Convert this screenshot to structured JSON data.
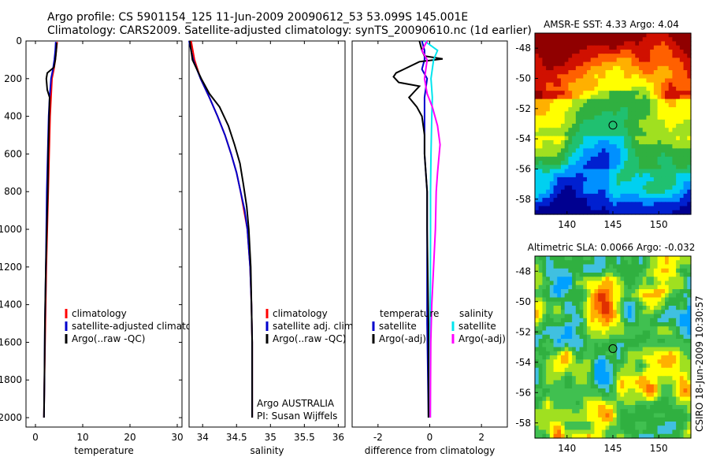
{
  "title_line1": "Argo profile: CS 5901154_125 11-Jun-2009 20090612_53 53.099S 145.001E",
  "title_line2": "Climatology: CARS2009. Satellite-adjusted climatology: synTS_20090610.nc (1d earlier)",
  "side_stamp": "CSIRO 18-Jun-2009 10:30:57",
  "colors": {
    "black": "#000000",
    "red": "#ff0000",
    "blue": "#0000cc",
    "cyan": "#00e5ee",
    "magenta": "#ff00ff"
  },
  "chart_data": [
    {
      "id": "temperature",
      "type": "line",
      "xlabel": "temperature",
      "ylabel": "",
      "xlim": [
        -2,
        31
      ],
      "ylim": [
        2050,
        0
      ],
      "xticks": [
        0,
        10,
        20,
        30
      ],
      "xtick_labels": [
        "0",
        "10",
        "20",
        "30"
      ],
      "yticks": [
        0,
        200,
        400,
        600,
        800,
        1000,
        1200,
        1400,
        1600,
        1800,
        2000
      ],
      "ytick_labels": [
        "0",
        "200",
        "400",
        "600",
        "800",
        "1000",
        "1200",
        "1400",
        "1600",
        "1800",
        "2000"
      ],
      "legend": {
        "placement": "lower-right",
        "entries": [
          "climatology",
          "satellite-adjusted climatology",
          "Argo(..raw -QC)"
        ]
      },
      "series": [
        {
          "name": "climatology",
          "color": "red",
          "points": [
            [
              4.6,
              5
            ],
            [
              4.4,
              50
            ],
            [
              4.2,
              100
            ],
            [
              3.9,
              150
            ],
            [
              3.5,
              200
            ],
            [
              3.3,
              300
            ],
            [
              3.1,
              400
            ],
            [
              2.9,
              600
            ],
            [
              2.7,
              800
            ],
            [
              2.5,
              1000
            ],
            [
              2.3,
              1200
            ],
            [
              2.1,
              1500
            ],
            [
              1.9,
              1800
            ],
            [
              1.8,
              2000
            ]
          ]
        },
        {
          "name": "satellite-adjusted climatology",
          "color": "blue",
          "points": [
            [
              4.3,
              5
            ],
            [
              4.2,
              50
            ],
            [
              4.0,
              100
            ],
            [
              3.7,
              150
            ],
            [
              3.3,
              200
            ],
            [
              3.0,
              300
            ],
            [
              2.8,
              400
            ],
            [
              2.6,
              600
            ],
            [
              2.4,
              800
            ],
            [
              2.3,
              1000
            ],
            [
              2.2,
              1200
            ],
            [
              2.0,
              1500
            ],
            [
              1.9,
              1800
            ],
            [
              1.8,
              2000
            ]
          ]
        },
        {
          "name": "Argo(..raw -QC)",
          "color": "black",
          "points": [
            [
              4.5,
              10
            ],
            [
              4.4,
              50
            ],
            [
              4.2,
              100
            ],
            [
              3.9,
              140
            ],
            [
              2.5,
              170
            ],
            [
              2.3,
              200
            ],
            [
              2.5,
              260
            ],
            [
              3.0,
              300
            ],
            [
              2.9,
              400
            ],
            [
              2.7,
              600
            ],
            [
              2.6,
              800
            ],
            [
              2.4,
              1000
            ],
            [
              2.2,
              1200
            ],
            [
              2.0,
              1500
            ],
            [
              1.9,
              1800
            ],
            [
              1.8,
              2000
            ]
          ]
        }
      ]
    },
    {
      "id": "salinity",
      "type": "line",
      "xlabel": "salinity",
      "ylabel": "",
      "xlim": [
        33.8,
        36.1
      ],
      "ylim": [
        2050,
        0
      ],
      "xticks": [
        34,
        34.5,
        35,
        35.5,
        36
      ],
      "xtick_labels": [
        "34",
        "34.5",
        "35",
        "35.5",
        "36"
      ],
      "legend": {
        "placement": "lower-right",
        "entries": [
          "climatology",
          "satellite adj. clim.",
          "Argo(..raw -QC)"
        ]
      },
      "annotation": [
        "Argo AUSTRALIA",
        "PI: Susan Wijffels"
      ],
      "series": [
        {
          "name": "climatology",
          "color": "red",
          "points": [
            [
              33.83,
              0
            ],
            [
              33.88,
              100
            ],
            [
              33.97,
              200
            ],
            [
              34.1,
              300
            ],
            [
              34.22,
              400
            ],
            [
              34.33,
              500
            ],
            [
              34.42,
              600
            ],
            [
              34.5,
              700
            ],
            [
              34.56,
              800
            ],
            [
              34.61,
              900
            ],
            [
              34.66,
              1000
            ],
            [
              34.7,
              1200
            ],
            [
              34.72,
              1400
            ],
            [
              34.73,
              1600
            ],
            [
              34.73,
              2000
            ]
          ]
        },
        {
          "name": "satellite adj. clim.",
          "color": "blue",
          "points": [
            [
              33.8,
              0
            ],
            [
              33.86,
              100
            ],
            [
              33.97,
              200
            ],
            [
              34.1,
              300
            ],
            [
              34.22,
              400
            ],
            [
              34.33,
              500
            ],
            [
              34.42,
              600
            ],
            [
              34.5,
              700
            ],
            [
              34.56,
              800
            ],
            [
              34.62,
              900
            ],
            [
              34.66,
              1000
            ],
            [
              34.7,
              1200
            ],
            [
              34.72,
              1400
            ],
            [
              34.73,
              1600
            ],
            [
              34.73,
              2000
            ]
          ]
        },
        {
          "name": "Argo(..raw -QC)",
          "color": "black",
          "points": [
            [
              33.81,
              0
            ],
            [
              33.85,
              100
            ],
            [
              33.98,
              200
            ],
            [
              34.1,
              280
            ],
            [
              34.25,
              350
            ],
            [
              34.38,
              450
            ],
            [
              34.47,
              550
            ],
            [
              34.55,
              650
            ],
            [
              34.6,
              760
            ],
            [
              34.65,
              880
            ],
            [
              34.68,
              1000
            ],
            [
              34.71,
              1200
            ],
            [
              34.72,
              1400
            ],
            [
              34.73,
              1600
            ],
            [
              34.73,
              2000
            ]
          ]
        }
      ]
    },
    {
      "id": "difference",
      "type": "line",
      "xlabel": "difference from climatology",
      "ylabel": "",
      "xlim": [
        -3.0,
        3.0
      ],
      "ylim": [
        2050,
        0
      ],
      "xticks": [
        -2,
        0,
        2
      ],
      "xtick_labels": [
        "-2",
        "0",
        "2"
      ],
      "legend": {
        "placement": "lower-right",
        "headers": [
          "temperature",
          "salinity"
        ],
        "entries": [
          "satellite",
          "Argo(-adj)",
          "satellite",
          "Argo(-adj)"
        ]
      },
      "series": [
        {
          "name": "satellite (temperature)",
          "color": "blue",
          "points": [
            [
              -0.3,
              0
            ],
            [
              -0.2,
              50
            ],
            [
              -0.2,
              100
            ],
            [
              -0.3,
              150
            ],
            [
              -0.1,
              200
            ],
            [
              -0.2,
              300
            ],
            [
              -0.2,
              400
            ],
            [
              -0.2,
              600
            ],
            [
              -0.1,
              800
            ],
            [
              -0.1,
              1000
            ],
            [
              -0.1,
              1200
            ],
            [
              -0.1,
              1500
            ],
            [
              -0.05,
              2000
            ]
          ]
        },
        {
          "name": "Argo(-adj) (temperature)",
          "color": "black",
          "points": [
            [
              -0.4,
              0
            ],
            [
              -0.3,
              50
            ],
            [
              -0.2,
              80
            ],
            [
              0.5,
              95
            ],
            [
              -0.4,
              110
            ],
            [
              -1.0,
              150
            ],
            [
              -1.3,
              170
            ],
            [
              -1.4,
              190
            ],
            [
              -1.2,
              220
            ],
            [
              -0.4,
              240
            ],
            [
              -0.6,
              270
            ],
            [
              -0.8,
              300
            ],
            [
              -0.5,
              350
            ],
            [
              -0.3,
              400
            ],
            [
              -0.2,
              500
            ],
            [
              -0.2,
              600
            ],
            [
              -0.1,
              800
            ],
            [
              -0.1,
              1000
            ],
            [
              -0.05,
              1500
            ],
            [
              -0.05,
              2000
            ]
          ]
        },
        {
          "name": "satellite (salinity)",
          "color": "cyan",
          "points": [
            [
              -0.2,
              0
            ],
            [
              0.3,
              50
            ],
            [
              0.15,
              100
            ],
            [
              0.05,
              200
            ],
            [
              0.1,
              300
            ],
            [
              0.08,
              400
            ],
            [
              0.05,
              600
            ],
            [
              0.03,
              800
            ],
            [
              0.03,
              1000
            ],
            [
              0.02,
              1500
            ],
            [
              0.02,
              2000
            ]
          ]
        },
        {
          "name": "Argo(-adj) (salinity)",
          "color": "magenta",
          "points": [
            [
              -0.1,
              0
            ],
            [
              -0.3,
              50
            ],
            [
              -0.1,
              100
            ],
            [
              -0.2,
              200
            ],
            [
              -0.1,
              280
            ],
            [
              0.1,
              350
            ],
            [
              0.3,
              450
            ],
            [
              0.4,
              550
            ],
            [
              0.3,
              700
            ],
            [
              0.25,
              800
            ],
            [
              0.22,
              1000
            ],
            [
              0.15,
              1200
            ],
            [
              0.08,
              1400
            ],
            [
              0.04,
              1600
            ],
            [
              0.02,
              2000
            ]
          ]
        }
      ]
    },
    {
      "id": "sst_map",
      "type": "heatmap",
      "title": "AMSR-E SST: 4.33 Argo: 4.04",
      "xlim": [
        136.5,
        153.5
      ],
      "ylim": [
        -59,
        -47
      ],
      "xticks": [
        140,
        145,
        150
      ],
      "xtick_labels": [
        "140",
        "145",
        "150"
      ],
      "yticks": [
        -48,
        -50,
        -52,
        -54,
        -56,
        -58
      ],
      "ytick_labels": [
        "-48",
        "-50",
        "-52",
        "-54",
        "-56",
        "-58"
      ],
      "marker": [
        145.0,
        -53.1
      ],
      "colormap": [
        "#000090",
        "#0020d0",
        "#0090ff",
        "#00d0f0",
        "#20c070",
        "#30b040",
        "#a0e020",
        "#ffff00",
        "#ffb000",
        "#ff6000",
        "#d01000",
        "#900000"
      ]
    },
    {
      "id": "sla_map",
      "type": "heatmap",
      "title": "Altimetric SLA: 0.0066 Argo: -0.032",
      "xlim": [
        136.5,
        153.5
      ],
      "ylim": [
        -59,
        -47
      ],
      "xticks": [
        140,
        145,
        150
      ],
      "xtick_labels": [
        "140",
        "145",
        "150"
      ],
      "yticks": [
        -48,
        -50,
        -52,
        -54,
        -56,
        -58
      ],
      "ytick_labels": [
        "-48",
        "-50",
        "-52",
        "-54",
        "-56",
        "-58"
      ],
      "marker": [
        145.0,
        -53.1
      ],
      "colormap": [
        "#00a0ff",
        "#40c0e0",
        "#30b040",
        "#40c050",
        "#a0e020",
        "#ffff00",
        "#ffb000",
        "#ff7000",
        "#e03000",
        "#c00000"
      ]
    }
  ]
}
